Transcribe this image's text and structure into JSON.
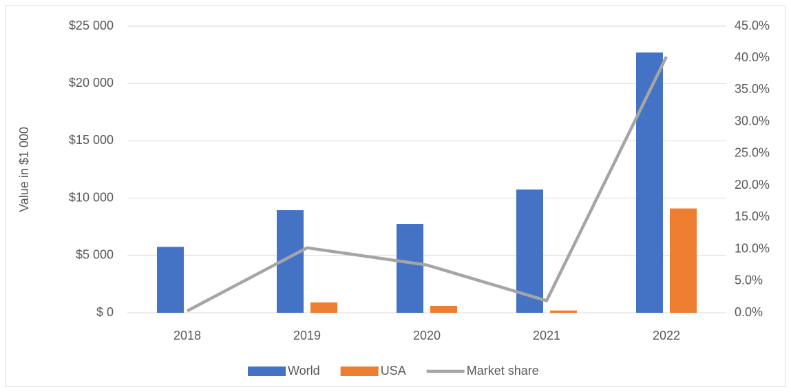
{
  "chart_data": {
    "type": "bar",
    "y_label": "Value  in $1 000",
    "categories": [
      "2018",
      "2019",
      "2020",
      "2021",
      "2022"
    ],
    "series": [
      {
        "name": "World",
        "color": "#4472c4",
        "values": [
          5750,
          8950,
          7750,
          10750,
          22700
        ]
      },
      {
        "name": "USA",
        "color": "#ed7d31",
        "values": [
          0,
          900,
          600,
          200,
          9100
        ]
      },
      {
        "name": "Market share",
        "type": "line",
        "axis": "y2",
        "color": "#a5a5a5",
        "values": [
          0.3,
          10.2,
          7.5,
          1.9,
          40.2
        ]
      }
    ],
    "ylim": [
      0,
      25000
    ],
    "yticks": [
      {
        "value": 0,
        "label": "$ 0"
      },
      {
        "value": 5000,
        "label": "$5 000"
      },
      {
        "value": 10000,
        "label": "$10 000"
      },
      {
        "value": 15000,
        "label": "$15 000"
      },
      {
        "value": 20000,
        "label": "$20 000"
      },
      {
        "value": 25000,
        "label": "$25 000"
      }
    ],
    "y2lim": [
      0,
      45
    ],
    "y2ticks": [
      {
        "value": 0,
        "label": "0.0%"
      },
      {
        "value": 5,
        "label": "5.0%"
      },
      {
        "value": 10,
        "label": "10.0%"
      },
      {
        "value": 15,
        "label": "15.0%"
      },
      {
        "value": 20,
        "label": "20.0%"
      },
      {
        "value": 25,
        "label": "25.0%"
      },
      {
        "value": 30,
        "label": "30.0%"
      },
      {
        "value": 35,
        "label": "35.0%"
      },
      {
        "value": 40,
        "label": "40.0%"
      },
      {
        "value": 45,
        "label": "45.0%"
      }
    ],
    "grid": true,
    "legend": "bottom"
  }
}
